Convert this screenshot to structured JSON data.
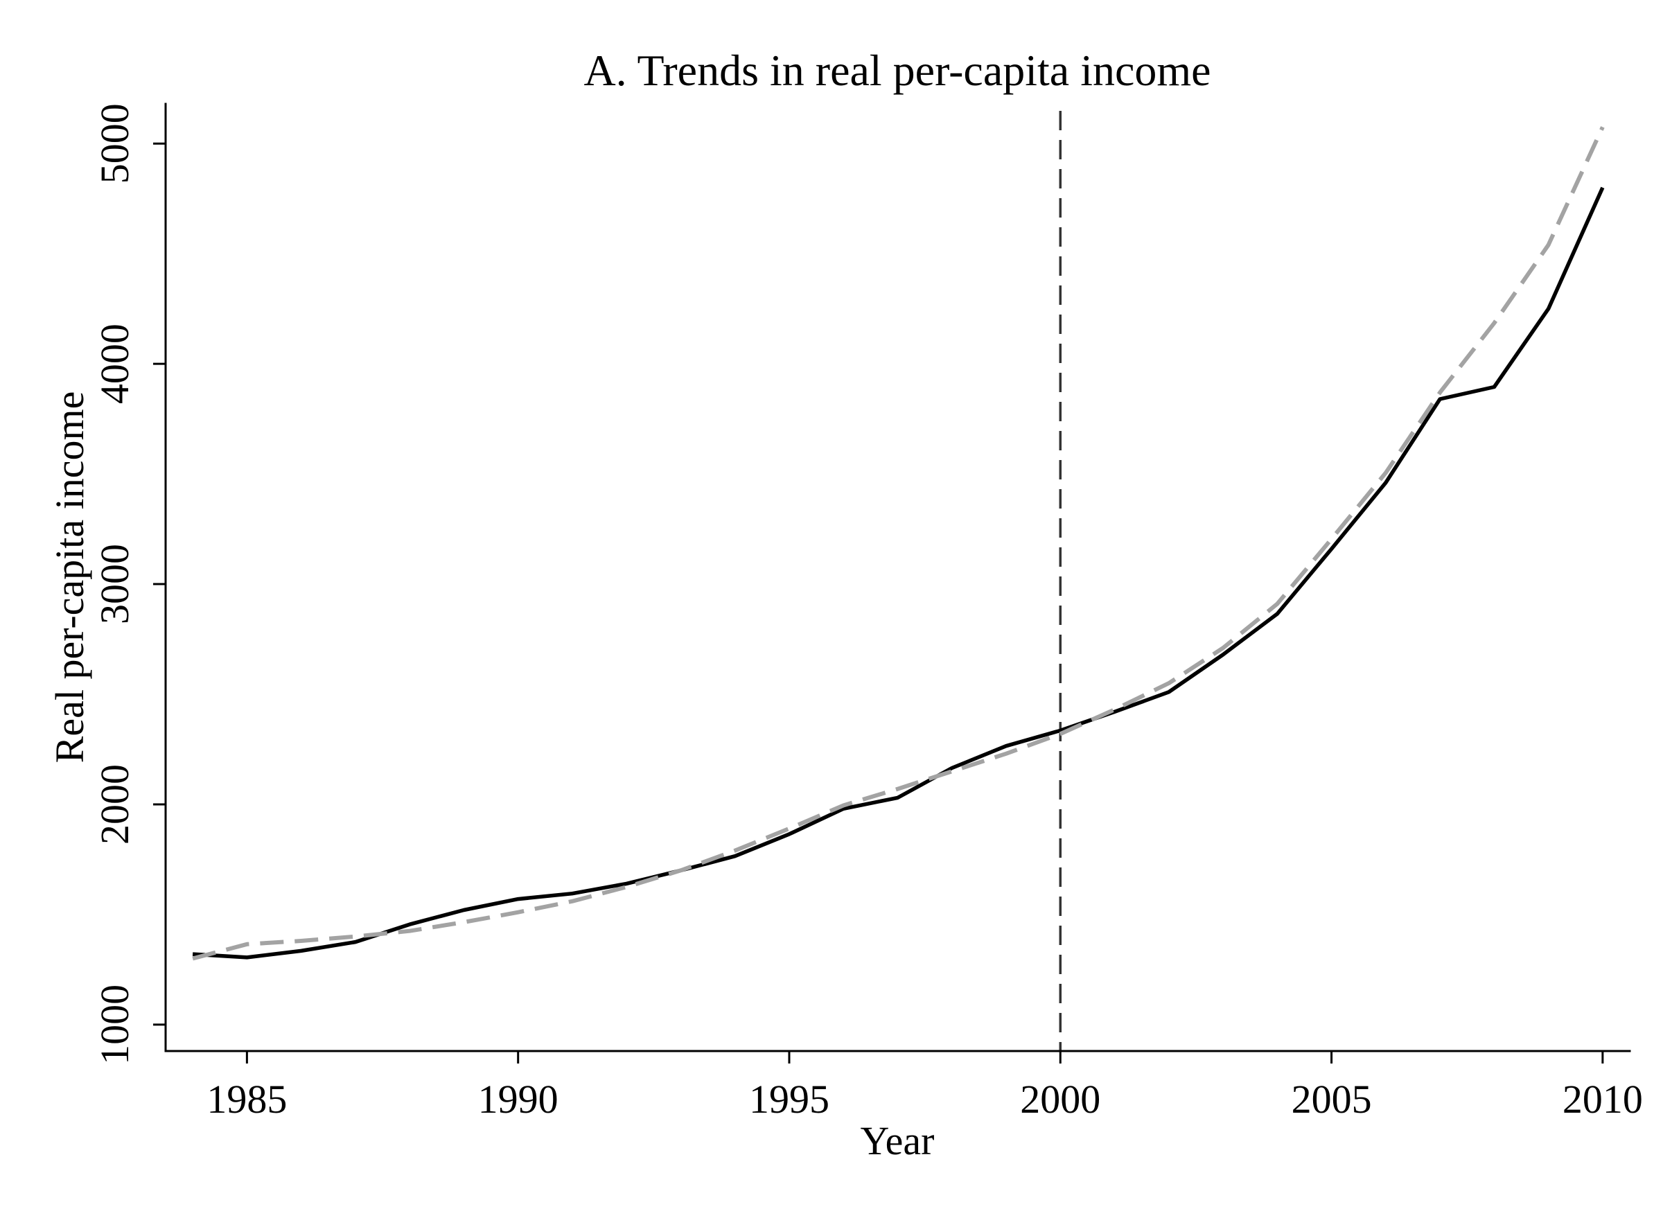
{
  "chart_data": {
    "type": "line",
    "title": "A. Trends in real per-capita income",
    "xlabel": "Year",
    "ylabel": "Real per-capita income",
    "x": [
      1984,
      1985,
      1986,
      1987,
      1988,
      1989,
      1990,
      1991,
      1992,
      1993,
      1994,
      1995,
      1996,
      1997,
      1998,
      1999,
      2000,
      2001,
      2002,
      2003,
      2004,
      2005,
      2006,
      2007,
      2008,
      2009,
      2010
    ],
    "series": [
      {
        "style": "solid",
        "color": "#000000",
        "values": [
          1320,
          1305,
          1335,
          1375,
          1455,
          1520,
          1570,
          1595,
          1640,
          1700,
          1765,
          1865,
          1980,
          2030,
          2165,
          2265,
          2335,
          2420,
          2510,
          2680,
          2865,
          3160,
          3460,
          3840,
          3895,
          4250,
          4800
        ]
      },
      {
        "style": "dashed",
        "color": "#a3a3a3",
        "values": [
          1300,
          1365,
          1380,
          1400,
          1425,
          1465,
          1510,
          1560,
          1625,
          1700,
          1790,
          1890,
          1995,
          2070,
          2150,
          2230,
          2320,
          2430,
          2550,
          2710,
          2910,
          3205,
          3505,
          3870,
          4185,
          4540,
          5075
        ]
      }
    ],
    "x_ticks": [
      1985,
      1990,
      1995,
      2000,
      2005,
      2010
    ],
    "y_ticks": [
      1000,
      2000,
      3000,
      4000,
      5000
    ],
    "xlim": [
      1983.5,
      2010.5
    ],
    "ylim": [
      880,
      5180
    ],
    "vline": {
      "x": 2000,
      "style": "dashed",
      "color": "#333333"
    },
    "grid": false,
    "legend": "none"
  }
}
